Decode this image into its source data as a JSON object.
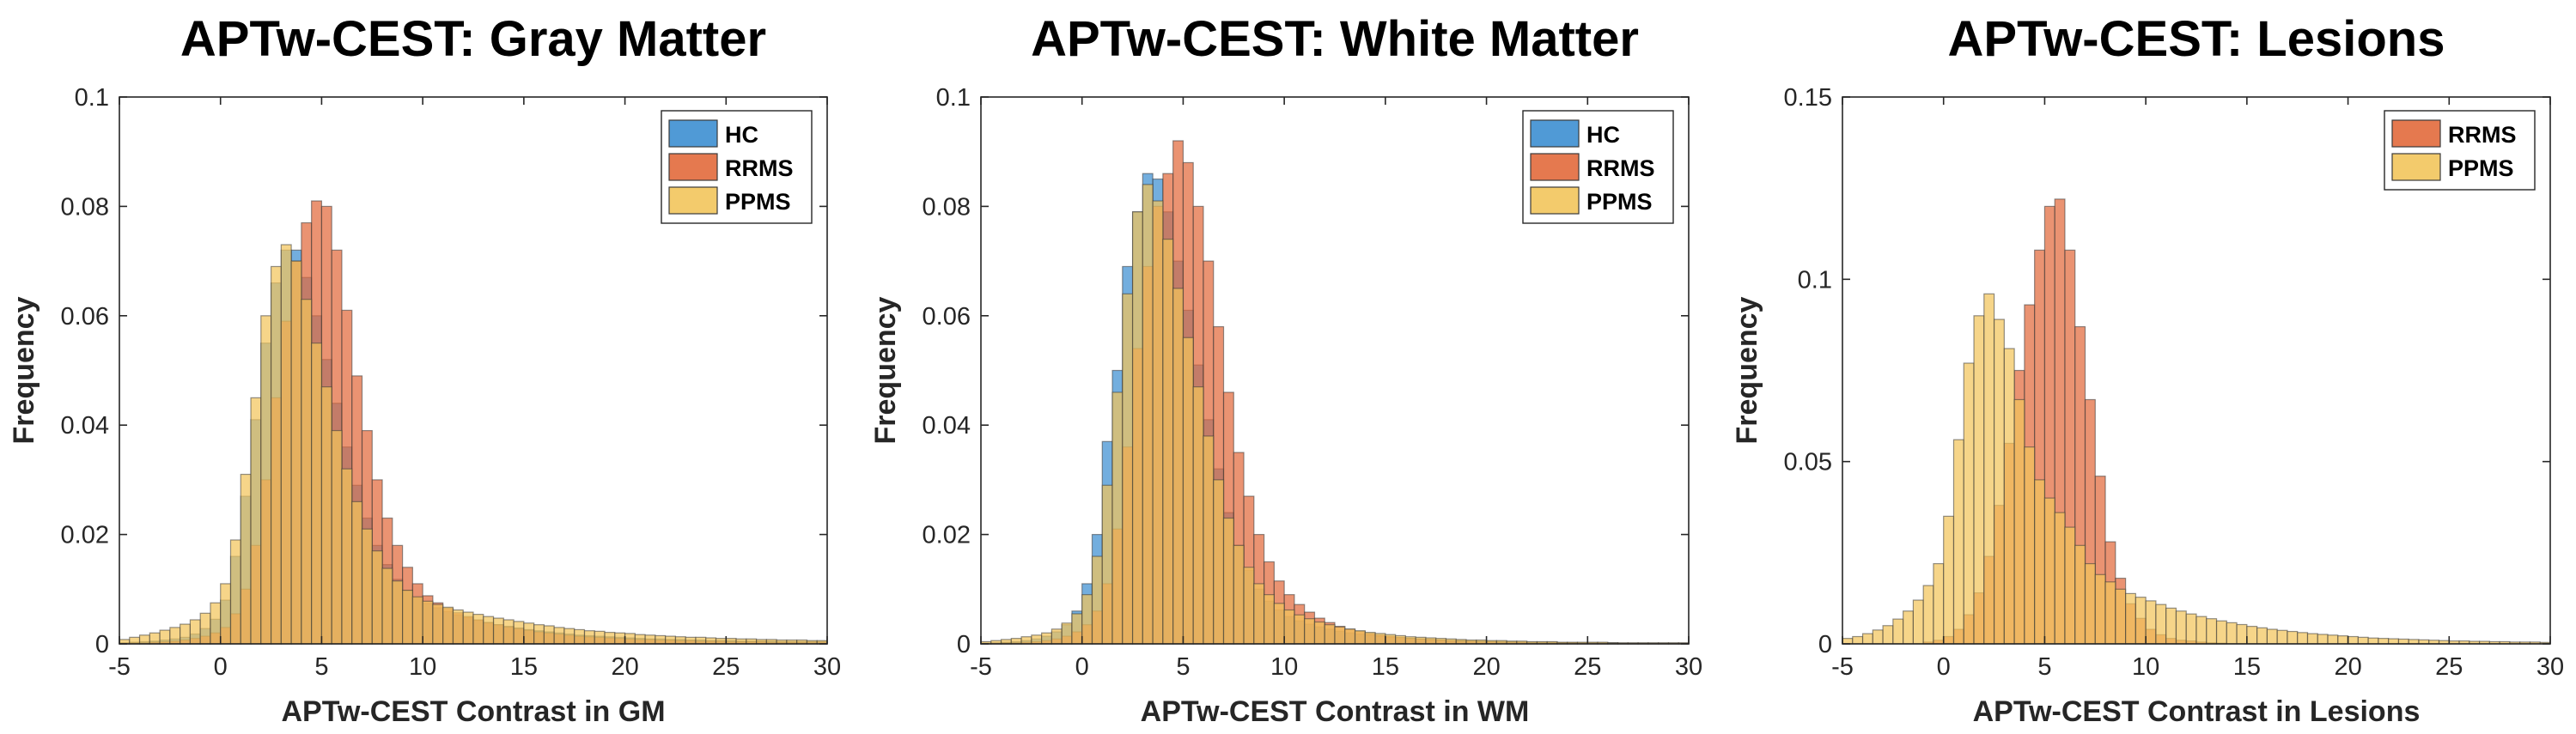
{
  "chart_data": [
    {
      "type": "bar",
      "title": "APTw-CEST: Gray Matter",
      "xlabel": "APTw-CEST Contrast in GM",
      "ylabel": "Frequency",
      "xlim": [
        -5,
        30
      ],
      "ylim": [
        0,
        0.1
      ],
      "xticks": [
        "-5",
        "0",
        "5",
        "10",
        "15",
        "20",
        "25",
        "30"
      ],
      "yticks": [
        "0",
        "0.02",
        "0.04",
        "0.06",
        "0.08",
        "0.1"
      ],
      "grid": false,
      "legend_position": "top-right",
      "bin_width": 0.5,
      "x": [
        -5,
        -4.5,
        -4,
        -3.5,
        -3,
        -2.5,
        -2,
        -1.5,
        -1,
        -0.5,
        0,
        0.5,
        1,
        1.5,
        2,
        2.5,
        3,
        3.5,
        4,
        4.5,
        5,
        5.5,
        6,
        6.5,
        7,
        7.5,
        8,
        8.5,
        9,
        9.5,
        10,
        10.5,
        11,
        11.5,
        12,
        12.5,
        13,
        13.5,
        14,
        14.5,
        15,
        15.5,
        16,
        16.5,
        17,
        17.5,
        18,
        18.5,
        19,
        19.5,
        20,
        20.5,
        21,
        21.5,
        22,
        22.5,
        23,
        23.5,
        24,
        24.5,
        25,
        25.5,
        26,
        26.5,
        27,
        27.5,
        28,
        28.5,
        29,
        29.5
      ],
      "series": [
        {
          "name": "HC",
          "color": "#3d8fd1",
          "values": [
            0.0002,
            0.0003,
            0.0004,
            0.0005,
            0.0007,
            0.0009,
            0.0012,
            0.0018,
            0.0028,
            0.0045,
            0.008,
            0.016,
            0.027,
            0.041,
            0.055,
            0.066,
            0.072,
            0.072,
            0.067,
            0.06,
            0.052,
            0.044,
            0.036,
            0.029,
            0.023,
            0.018,
            0.0145,
            0.0118,
            0.0098,
            0.0084,
            0.0074,
            0.0066,
            0.0059,
            0.0053,
            0.0048,
            0.0043,
            0.0039,
            0.0035,
            0.0032,
            0.0029,
            0.0026,
            0.0024,
            0.0022,
            0.002,
            0.0018,
            0.0016,
            0.0015,
            0.0014,
            0.0013,
            0.0012,
            0.0011,
            0.001,
            0.0009,
            0.0009,
            0.0008,
            0.0008,
            0.0007,
            0.0007,
            0.0006,
            0.0006,
            0.0006,
            0.0005,
            0.0005,
            0.0005,
            0.0005,
            0.0004,
            0.0004,
            0.0004,
            0.0004,
            0.0004
          ]
        },
        {
          "name": "RRMS",
          "color": "#e26a3c",
          "values": [
            0.0001,
            0.0002,
            0.0002,
            0.0003,
            0.0004,
            0.0005,
            0.0007,
            0.001,
            0.0014,
            0.002,
            0.003,
            0.0055,
            0.01,
            0.018,
            0.03,
            0.045,
            0.059,
            0.07,
            0.077,
            0.081,
            0.08,
            0.072,
            0.061,
            0.049,
            0.039,
            0.03,
            0.023,
            0.018,
            0.014,
            0.011,
            0.0088,
            0.0075,
            0.0065,
            0.0057,
            0.005,
            0.0044,
            0.0039,
            0.0035,
            0.0031,
            0.0028,
            0.0025,
            0.0022,
            0.002,
            0.0018,
            0.0016,
            0.0014,
            0.0013,
            0.0012,
            0.0011,
            0.001,
            0.0009,
            0.0008,
            0.0008,
            0.0007,
            0.0007,
            0.0006,
            0.0006,
            0.0005,
            0.0005,
            0.0005,
            0.0004,
            0.0004,
            0.0004,
            0.0004,
            0.0003,
            0.0003,
            0.0003,
            0.0003,
            0.0003,
            0.0003
          ]
        },
        {
          "name": "PPMS",
          "color": "#f2c55c",
          "values": [
            0.0008,
            0.0012,
            0.0016,
            0.002,
            0.0025,
            0.003,
            0.0036,
            0.0044,
            0.0056,
            0.0075,
            0.011,
            0.019,
            0.031,
            0.045,
            0.06,
            0.069,
            0.073,
            0.07,
            0.063,
            0.055,
            0.047,
            0.039,
            0.032,
            0.026,
            0.021,
            0.017,
            0.0138,
            0.0115,
            0.0098,
            0.0086,
            0.0078,
            0.0072,
            0.0067,
            0.0062,
            0.0058,
            0.0054,
            0.005,
            0.0047,
            0.0044,
            0.0041,
            0.0038,
            0.0035,
            0.0033,
            0.003,
            0.0028,
            0.0026,
            0.0024,
            0.0023,
            0.0021,
            0.002,
            0.0019,
            0.0017,
            0.0016,
            0.0015,
            0.0014,
            0.0013,
            0.0012,
            0.0012,
            0.0011,
            0.001,
            0.001,
            0.0009,
            0.0009,
            0.0008,
            0.0008,
            0.0007,
            0.0007,
            0.0007,
            0.0006,
            0.0006
          ]
        }
      ]
    },
    {
      "type": "bar",
      "title": "APTw-CEST: White Matter",
      "xlabel": "APTw-CEST Contrast in WM",
      "ylabel": "Frequency",
      "xlim": [
        -5,
        30
      ],
      "ylim": [
        0,
        0.1
      ],
      "xticks": [
        "-5",
        "0",
        "5",
        "10",
        "15",
        "20",
        "25",
        "30"
      ],
      "yticks": [
        "0",
        "0.02",
        "0.04",
        "0.06",
        "0.08",
        "0.1"
      ],
      "grid": false,
      "legend_position": "top-right",
      "bin_width": 0.5,
      "x": [
        -5,
        -4.5,
        -4,
        -3.5,
        -3,
        -2.5,
        -2,
        -1.5,
        -1,
        -0.5,
        0,
        0.5,
        1,
        1.5,
        2,
        2.5,
        3,
        3.5,
        4,
        4.5,
        5,
        5.5,
        6,
        6.5,
        7,
        7.5,
        8,
        8.5,
        9,
        9.5,
        10,
        10.5,
        11,
        11.5,
        12,
        12.5,
        13,
        13.5,
        14,
        14.5,
        15,
        15.5,
        16,
        16.5,
        17,
        17.5,
        18,
        18.5,
        19,
        19.5,
        20,
        20.5,
        21,
        21.5,
        22,
        22.5,
        23,
        23.5,
        24,
        24.5,
        25,
        25.5,
        26,
        26.5,
        27,
        27.5,
        28,
        28.5,
        29,
        29.5
      ],
      "series": [
        {
          "name": "HC",
          "color": "#3d8fd1",
          "values": [
            0.0001,
            0.0002,
            0.0003,
            0.0004,
            0.0006,
            0.0009,
            0.0014,
            0.0022,
            0.0035,
            0.006,
            0.011,
            0.02,
            0.037,
            0.05,
            0.069,
            0.079,
            0.086,
            0.085,
            0.079,
            0.07,
            0.061,
            0.051,
            0.041,
            0.032,
            0.024,
            0.018,
            0.0135,
            0.01,
            0.0078,
            0.0062,
            0.005,
            0.0042,
            0.0036,
            0.0031,
            0.0027,
            0.0023,
            0.002,
            0.0018,
            0.0016,
            0.0014,
            0.0012,
            0.0011,
            0.001,
            0.0009,
            0.0008,
            0.0007,
            0.0006,
            0.0006,
            0.0005,
            0.0005,
            0.0004,
            0.0004,
            0.0004,
            0.0003,
            0.0003,
            0.0003,
            0.0003,
            0.0002,
            0.0002,
            0.0002,
            0.0002,
            0.0002,
            0.0002,
            0.0001,
            0.0001,
            0.0001,
            0.0001,
            0.0001,
            0.0001,
            0.0001
          ]
        },
        {
          "name": "RRMS",
          "color": "#e26a3c",
          "values": [
            0.0001,
            0.0001,
            0.0002,
            0.0002,
            0.0003,
            0.0004,
            0.0006,
            0.0009,
            0.0014,
            0.0022,
            0.0035,
            0.006,
            0.011,
            0.021,
            0.036,
            0.054,
            0.069,
            0.08,
            0.086,
            0.092,
            0.088,
            0.08,
            0.07,
            0.058,
            0.046,
            0.035,
            0.027,
            0.02,
            0.015,
            0.0115,
            0.009,
            0.0072,
            0.0058,
            0.0047,
            0.0039,
            0.0032,
            0.0027,
            0.0023,
            0.0019,
            0.0016,
            0.0014,
            0.0012,
            0.001,
            0.0009,
            0.0008,
            0.0007,
            0.0006,
            0.0005,
            0.0005,
            0.0004,
            0.0004,
            0.0003,
            0.0003,
            0.0003,
            0.0002,
            0.0002,
            0.0002,
            0.0002,
            0.0002,
            0.0001,
            0.0001,
            0.0001,
            0.0001,
            0.0001,
            0.0001,
            0.0001,
            0.0001,
            0.0001,
            0.0001,
            0.0001
          ]
        },
        {
          "name": "PPMS",
          "color": "#f2c55c",
          "values": [
            0.0004,
            0.0006,
            0.0008,
            0.001,
            0.0013,
            0.0016,
            0.002,
            0.0027,
            0.0038,
            0.0055,
            0.009,
            0.016,
            0.029,
            0.046,
            0.064,
            0.079,
            0.084,
            0.081,
            0.074,
            0.065,
            0.056,
            0.047,
            0.038,
            0.03,
            0.023,
            0.018,
            0.014,
            0.011,
            0.009,
            0.0074,
            0.0062,
            0.0053,
            0.0046,
            0.004,
            0.0035,
            0.0031,
            0.0027,
            0.0024,
            0.0021,
            0.0019,
            0.0017,
            0.0015,
            0.0013,
            0.0012,
            0.0011,
            0.001,
            0.0009,
            0.0008,
            0.0007,
            0.0007,
            0.0006,
            0.0006,
            0.0005,
            0.0005,
            0.0004,
            0.0004,
            0.0004,
            0.0003,
            0.0003,
            0.0003,
            0.0003,
            0.0003,
            0.0002,
            0.0002,
            0.0002,
            0.0002,
            0.0002,
            0.0002,
            0.0002,
            0.0002
          ]
        }
      ]
    },
    {
      "type": "bar",
      "title": "APTw-CEST: Lesions",
      "xlabel": "APTw-CEST Contrast in Lesions",
      "ylabel": "Frequency",
      "xlim": [
        -5,
        30
      ],
      "ylim": [
        0,
        0.15
      ],
      "xticks": [
        "-5",
        "0",
        "5",
        "10",
        "15",
        "20",
        "25",
        "30"
      ],
      "yticks": [
        "0",
        "0.05",
        "0.1",
        "0.15"
      ],
      "grid": false,
      "legend_position": "top-right",
      "bin_width": 0.5,
      "x": [
        -5,
        -4.5,
        -4,
        -3.5,
        -3,
        -2.5,
        -2,
        -1.5,
        -1,
        -0.5,
        0,
        0.5,
        1,
        1.5,
        2,
        2.5,
        3,
        3.5,
        4,
        4.5,
        5,
        5.5,
        6,
        6.5,
        7,
        7.5,
        8,
        8.5,
        9,
        9.5,
        10,
        10.5,
        11,
        11.5,
        12,
        12.5,
        13,
        13.5,
        14,
        14.5,
        15,
        15.5,
        16,
        16.5,
        17,
        17.5,
        18,
        18.5,
        19,
        19.5,
        20,
        20.5,
        21,
        21.5,
        22,
        22.5,
        23,
        23.5,
        24,
        24.5,
        25,
        25.5,
        26,
        26.5,
        27,
        27.5,
        28,
        28.5,
        29,
        29.5
      ],
      "series": [
        {
          "name": "RRMS",
          "color": "#e26a3c",
          "values": [
            0,
            0,
            0,
            0,
            0,
            0,
            0,
            0,
            0.0005,
            0.001,
            0.002,
            0.004,
            0.008,
            0.014,
            0.024,
            0.038,
            0.055,
            0.075,
            0.093,
            0.108,
            0.12,
            0.122,
            0.108,
            0.087,
            0.067,
            0.046,
            0.028,
            0.018,
            0.011,
            0.007,
            0.004,
            0.0025,
            0.0015,
            0.001,
            0.0008,
            0.0005,
            0.0003,
            0.0002,
            0,
            0,
            0,
            0,
            0,
            0,
            0,
            0,
            0,
            0,
            0,
            0,
            0,
            0,
            0,
            0,
            0,
            0,
            0,
            0,
            0,
            0,
            0,
            0,
            0,
            0,
            0,
            0,
            0,
            0,
            0,
            0
          ]
        },
        {
          "name": "PPMS",
          "color": "#f2c55c",
          "values": [
            0.0015,
            0.002,
            0.0028,
            0.0038,
            0.005,
            0.0068,
            0.009,
            0.012,
            0.016,
            0.022,
            0.035,
            0.056,
            0.077,
            0.09,
            0.096,
            0.089,
            0.081,
            0.067,
            0.054,
            0.045,
            0.04,
            0.036,
            0.032,
            0.027,
            0.022,
            0.019,
            0.017,
            0.015,
            0.0138,
            0.0128,
            0.0118,
            0.0108,
            0.0098,
            0.009,
            0.0082,
            0.0075,
            0.0069,
            0.0063,
            0.0058,
            0.0053,
            0.0048,
            0.0044,
            0.004,
            0.0037,
            0.0034,
            0.0031,
            0.0028,
            0.0026,
            0.0024,
            0.0022,
            0.002,
            0.0018,
            0.0016,
            0.0015,
            0.0014,
            0.0013,
            0.0012,
            0.0011,
            0.001,
            0.0009,
            0.0008,
            0.0008,
            0.0007,
            0.0007,
            0.0006,
            0.0006,
            0.0005,
            0.0005,
            0.0005,
            0.0004
          ]
        }
      ]
    }
  ]
}
